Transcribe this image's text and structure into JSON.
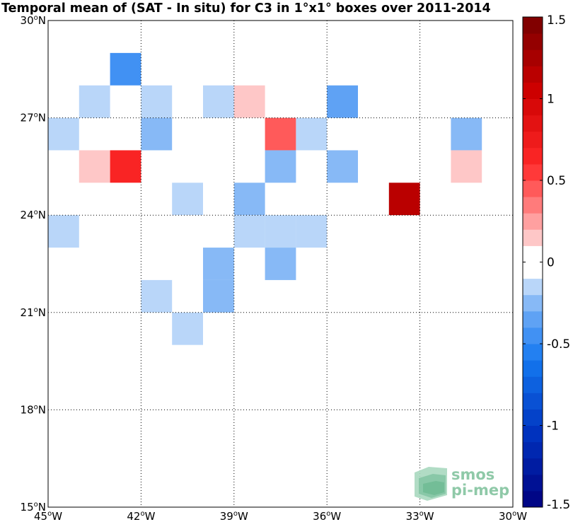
{
  "chart_data": {
    "type": "heatmap",
    "title": "Temporal mean of (SAT - In situ) for C3 in 1°x1° boxes over 2011-2014",
    "xlim": [
      -45,
      -30
    ],
    "ylim": [
      15,
      30
    ],
    "grid": true,
    "x_ticks": [
      {
        "value": -45,
        "deg": "45",
        "hem": "W"
      },
      {
        "value": -42,
        "deg": "42",
        "hem": "W"
      },
      {
        "value": -39,
        "deg": "39",
        "hem": "W"
      },
      {
        "value": -36,
        "deg": "36",
        "hem": "W"
      },
      {
        "value": -33,
        "deg": "33",
        "hem": "W"
      },
      {
        "value": -30,
        "deg": "30",
        "hem": "W"
      }
    ],
    "y_ticks": [
      {
        "value": 15,
        "deg": "15",
        "hem": "N"
      },
      {
        "value": 18,
        "deg": "18",
        "hem": "N"
      },
      {
        "value": 21,
        "deg": "21",
        "hem": "N"
      },
      {
        "value": 24,
        "deg": "24",
        "hem": "N"
      },
      {
        "value": 27,
        "deg": "27",
        "hem": "N"
      },
      {
        "value": 30,
        "deg": "30",
        "hem": "N"
      }
    ],
    "colorbar": {
      "min": -1.5,
      "max": 1.5,
      "levels": 30,
      "ticks": [
        "-1.5",
        "-1",
        "-0.5",
        "0",
        "0.5",
        "1",
        "1.5"
      ],
      "tick_values": [
        -1.5,
        -1,
        -0.5,
        0,
        0.5,
        1,
        1.5
      ]
    },
    "cells": [
      {
        "lon": -43,
        "lat": 28,
        "value": -0.45
      },
      {
        "lon": -44,
        "lat": 27,
        "value": -0.15
      },
      {
        "lon": -42,
        "lat": 27,
        "value": -0.15
      },
      {
        "lon": -40,
        "lat": 27,
        "value": -0.15
      },
      {
        "lon": -39,
        "lat": 27,
        "value": 0.15
      },
      {
        "lon": -36,
        "lat": 27,
        "value": -0.35
      },
      {
        "lon": -45,
        "lat": 26,
        "value": -0.15
      },
      {
        "lon": -42,
        "lat": 26,
        "value": -0.25
      },
      {
        "lon": -38,
        "lat": 26,
        "value": 0.45
      },
      {
        "lon": -37,
        "lat": 26,
        "value": -0.15
      },
      {
        "lon": -32,
        "lat": 26,
        "value": -0.25
      },
      {
        "lon": -44,
        "lat": 25,
        "value": 0.15
      },
      {
        "lon": -43,
        "lat": 25,
        "value": 0.65
      },
      {
        "lon": -38,
        "lat": 25,
        "value": -0.25
      },
      {
        "lon": -36,
        "lat": 25,
        "value": -0.25
      },
      {
        "lon": -32,
        "lat": 25,
        "value": 0.15
      },
      {
        "lon": -41,
        "lat": 24,
        "value": -0.15
      },
      {
        "lon": -39,
        "lat": 24,
        "value": -0.25
      },
      {
        "lon": -34,
        "lat": 24,
        "value": 1.15
      },
      {
        "lon": -45,
        "lat": 23,
        "value": -0.15
      },
      {
        "lon": -39,
        "lat": 23,
        "value": -0.15
      },
      {
        "lon": -38,
        "lat": 23,
        "value": -0.15
      },
      {
        "lon": -37,
        "lat": 23,
        "value": -0.15
      },
      {
        "lon": -40,
        "lat": 22,
        "value": -0.25
      },
      {
        "lon": -38,
        "lat": 22,
        "value": -0.25
      },
      {
        "lon": -40,
        "lat": 21,
        "value": -0.25
      },
      {
        "lon": -42,
        "lat": 21,
        "value": -0.15
      },
      {
        "lon": -41,
        "lat": 20,
        "value": -0.15
      }
    ]
  },
  "logo": {
    "line1": "smos",
    "line2": "pi-mep"
  },
  "colors": {
    "grid": "#000000",
    "background": "#ffffff"
  }
}
